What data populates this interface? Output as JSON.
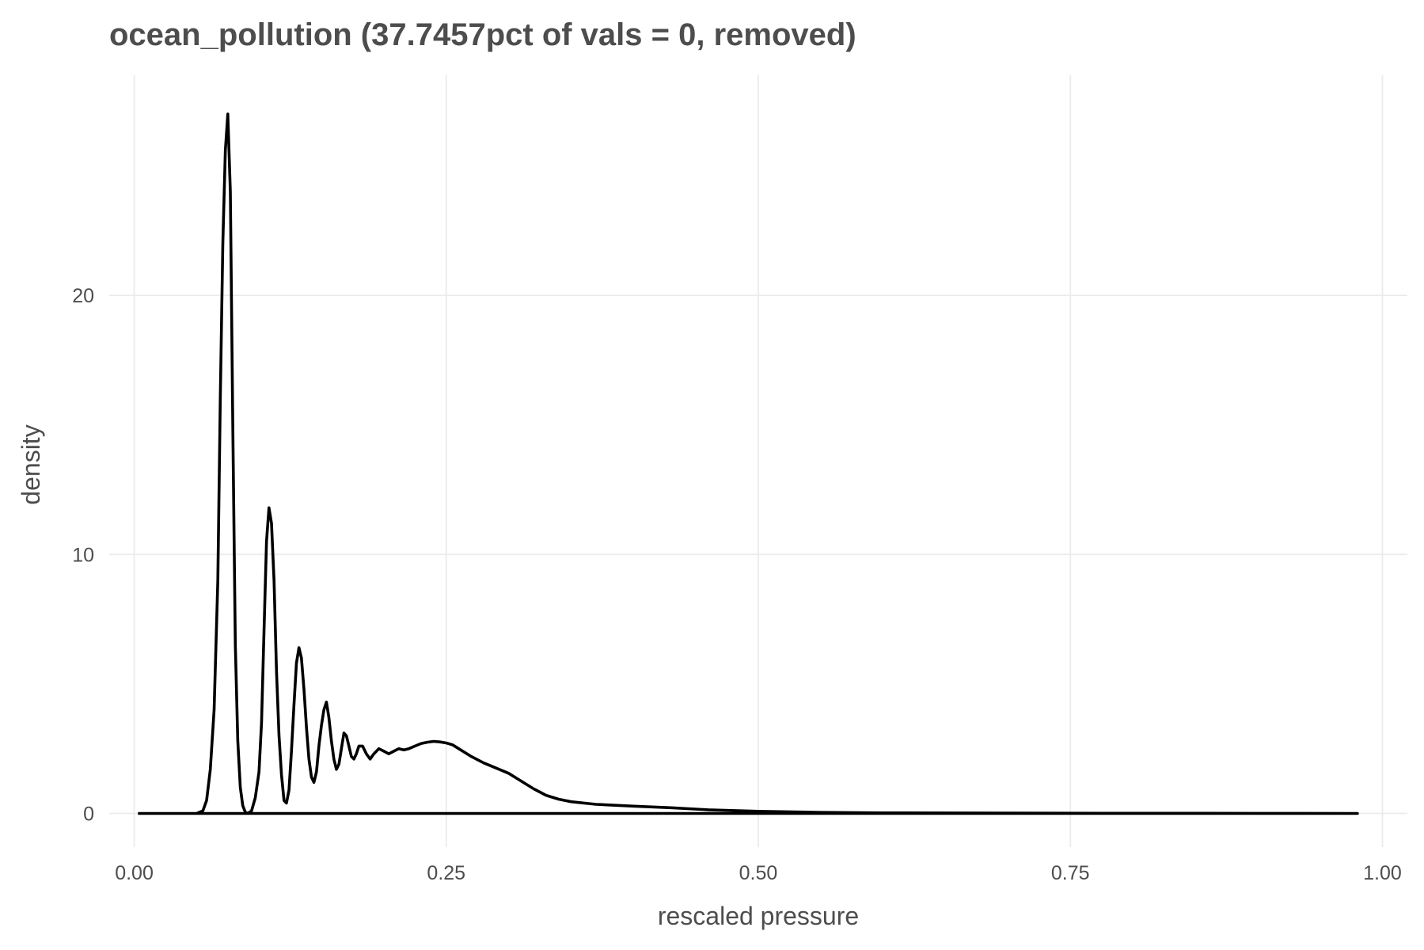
{
  "chart_data": {
    "type": "line",
    "title": "ocean_pollution (37.7457pct of vals = 0, removed)",
    "xlabel": "rescaled pressure",
    "ylabel": "density",
    "xlim": [
      -0.02,
      1.02
    ],
    "ylim": [
      -1.3,
      28.5
    ],
    "x_ticks": [
      0,
      0.25,
      0.5,
      0.75,
      1
    ],
    "x_tick_labels": [
      "0.00",
      "0.25",
      "0.50",
      "0.75",
      "1.00"
    ],
    "y_ticks": [
      0,
      10,
      20
    ],
    "y_tick_labels": [
      "0",
      "10",
      "20"
    ],
    "grid": true,
    "legend": "none",
    "line_color": "#000000",
    "series": [
      {
        "x": [
          0.003,
          0.03,
          0.05,
          0.055,
          0.058,
          0.061,
          0.064,
          0.067,
          0.069,
          0.071,
          0.073,
          0.075,
          0.077,
          0.079,
          0.081,
          0.083,
          0.085,
          0.087,
          0.089,
          0.091,
          0.094,
          0.097,
          0.1,
          0.102,
          0.104,
          0.106,
          0.108,
          0.11,
          0.112,
          0.114,
          0.116,
          0.118,
          0.12,
          0.122,
          0.124,
          0.126,
          0.128,
          0.13,
          0.132,
          0.134,
          0.136,
          0.138,
          0.14,
          0.142,
          0.144,
          0.146,
          0.148,
          0.15,
          0.152,
          0.154,
          0.156,
          0.158,
          0.16,
          0.162,
          0.164,
          0.166,
          0.168,
          0.17,
          0.172,
          0.174,
          0.176,
          0.178,
          0.18,
          0.183,
          0.186,
          0.189,
          0.192,
          0.196,
          0.2,
          0.204,
          0.208,
          0.212,
          0.216,
          0.22,
          0.225,
          0.23,
          0.235,
          0.24,
          0.245,
          0.25,
          0.255,
          0.26,
          0.27,
          0.28,
          0.29,
          0.3,
          0.31,
          0.32,
          0.33,
          0.34,
          0.35,
          0.37,
          0.4,
          0.43,
          0.46,
          0.5,
          0.55,
          0.6,
          0.7,
          0.8,
          0.9,
          0.98
        ],
        "y": [
          0,
          0,
          0,
          0.1,
          0.5,
          1.7,
          4.0,
          9.0,
          16.0,
          22.0,
          25.6,
          27.0,
          24.0,
          15.0,
          6.5,
          2.8,
          1.0,
          0.3,
          0.05,
          0,
          0.1,
          0.6,
          1.6,
          3.5,
          7.0,
          10.5,
          11.8,
          11.2,
          9.0,
          5.5,
          3.0,
          1.5,
          0.5,
          0.4,
          0.9,
          2.4,
          4.2,
          5.8,
          6.4,
          6.0,
          4.8,
          3.3,
          2.1,
          1.4,
          1.2,
          1.6,
          2.6,
          3.4,
          4.0,
          4.3,
          3.7,
          2.8,
          2.1,
          1.7,
          1.9,
          2.5,
          3.1,
          3.0,
          2.6,
          2.2,
          2.1,
          2.3,
          2.6,
          2.6,
          2.3,
          2.1,
          2.3,
          2.5,
          2.4,
          2.3,
          2.4,
          2.5,
          2.45,
          2.5,
          2.6,
          2.7,
          2.75,
          2.78,
          2.76,
          2.72,
          2.65,
          2.5,
          2.2,
          1.95,
          1.75,
          1.55,
          1.25,
          0.95,
          0.7,
          0.55,
          0.45,
          0.35,
          0.28,
          0.22,
          0.14,
          0.08,
          0.04,
          0.02,
          0.01,
          0.005,
          0.002,
          0.0
        ]
      }
    ]
  }
}
